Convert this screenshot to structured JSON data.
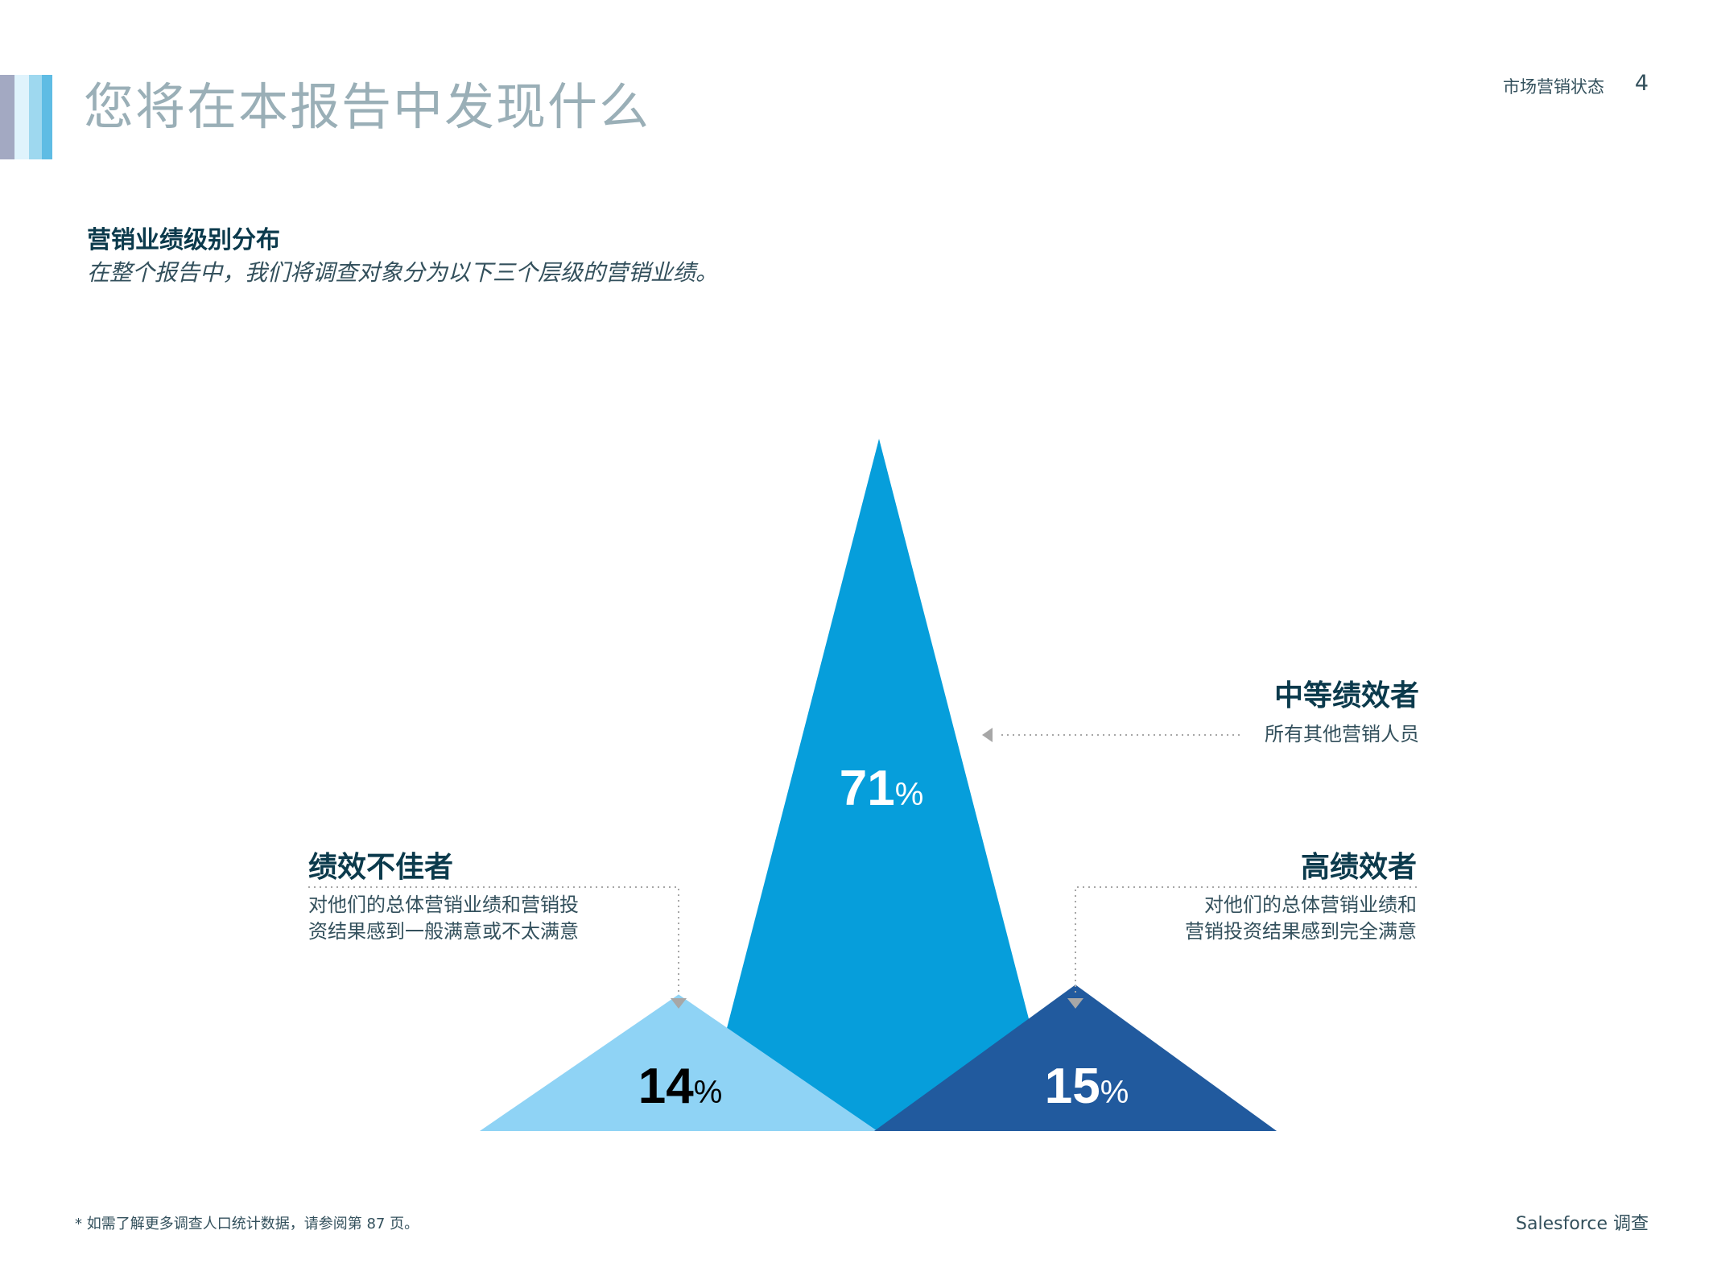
{
  "header": {
    "title": "您将在本报告中发现什么",
    "report_name": "市场营销状态",
    "page_number": "4",
    "accent_colors": [
      "#a3a9c2",
      "#dff3fc",
      "#9ed8ef",
      "#5fbce4"
    ]
  },
  "section": {
    "title": "营销业绩级别分布",
    "subtitle": "在整个报告中，我们将调查对象分为以下三个层级的营销业绩。"
  },
  "chart_data": {
    "type": "area",
    "series": [
      {
        "key": "low",
        "value": 14,
        "value_label": "14",
        "unit": "%",
        "color": "#8fd3f5"
      },
      {
        "key": "mid",
        "value": 71,
        "value_label": "71",
        "unit": "%",
        "color": "#069edb"
      },
      {
        "key": "high",
        "value": 15,
        "value_label": "15",
        "unit": "%",
        "color": "#215a9e"
      }
    ],
    "labels": {
      "mid": {
        "title": "中等绩效者",
        "lines": [
          "所有其他营销人员"
        ]
      },
      "low": {
        "title": "绩效不佳者",
        "lines": [
          "对他们的总体营销业绩和营销投",
          "资结果感到一般满意或不太满意"
        ]
      },
      "high": {
        "title": "高绩效者",
        "lines": [
          "对他们的总体营销业绩和",
          "营销投资结果感到完全满意"
        ]
      }
    }
  },
  "footer": {
    "footnote": "* 如需了解更多调查人口统计数据，请参阅第 87 页。",
    "brand": "Salesforce 调查"
  }
}
